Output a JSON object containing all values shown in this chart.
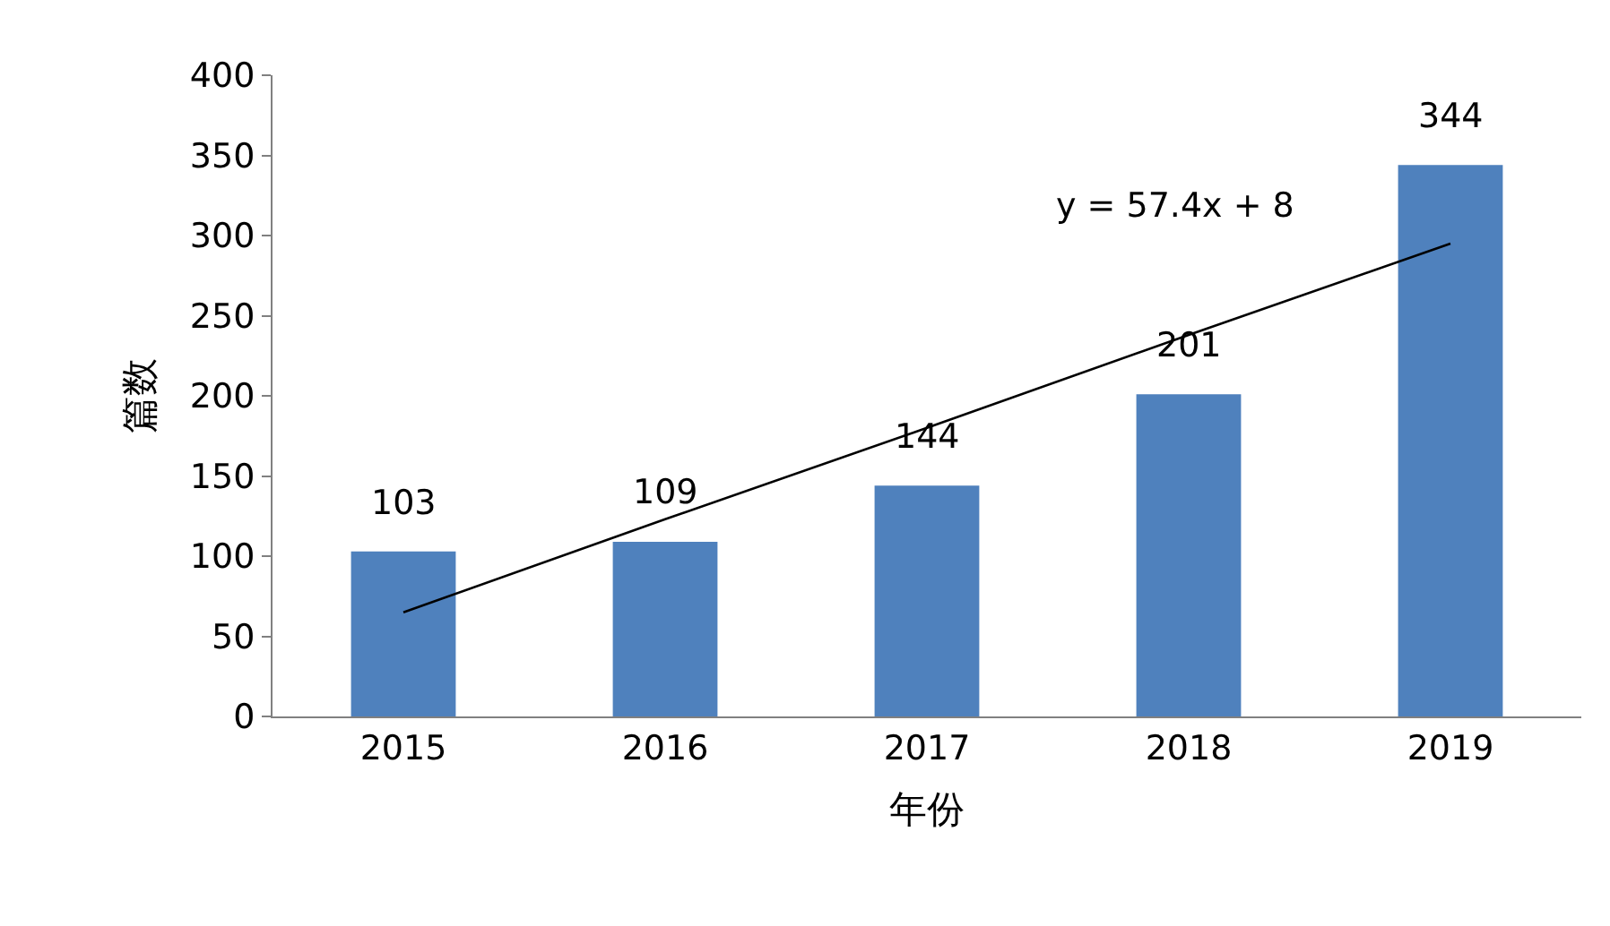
{
  "chart_data": {
    "type": "bar",
    "xlabel": "年份",
    "ylabel": "篇数",
    "categories": [
      "2015",
      "2016",
      "2017",
      "2018",
      "2019"
    ],
    "series": [
      {
        "color": "#4f81bd",
        "values": [
          103,
          109,
          144,
          201,
          344
        ],
        "data_labels": true
      },
      {
        "type": "line",
        "color": "#000000",
        "values": [
          65,
          123,
          180,
          238,
          295
        ]
      }
    ],
    "annotations": [
      "y = 57.4x + 8"
    ],
    "ylim": [
      0,
      400
    ],
    "yticks": [
      0,
      50,
      100,
      150,
      200,
      250,
      300,
      350,
      400
    ],
    "grid": false,
    "legend": false
  }
}
